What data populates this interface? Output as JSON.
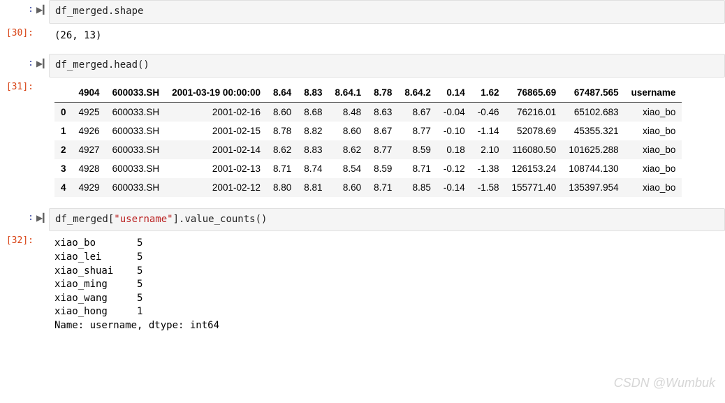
{
  "cell1": {
    "prompt_in": ":",
    "prompt_out": "[30]:",
    "code": "df_merged.shape",
    "output": "(26, 13)"
  },
  "cell2": {
    "prompt_in": ":",
    "prompt_out": "[31]:",
    "code": "df_merged.head()",
    "table": {
      "columns": [
        "4904",
        "600033.SH",
        "2001-03-19 00:00:00",
        "8.64",
        "8.83",
        "8.64.1",
        "8.78",
        "8.64.2",
        "0.14",
        "1.62",
        "76865.69",
        "67487.565",
        "username"
      ],
      "index": [
        "0",
        "1",
        "2",
        "3",
        "4"
      ],
      "rows": [
        [
          "4925",
          "600033.SH",
          "2001-02-16",
          "8.60",
          "8.68",
          "8.48",
          "8.63",
          "8.67",
          "-0.04",
          "-0.46",
          "76216.01",
          "65102.683",
          "xiao_bo"
        ],
        [
          "4926",
          "600033.SH",
          "2001-02-15",
          "8.78",
          "8.82",
          "8.60",
          "8.67",
          "8.77",
          "-0.10",
          "-1.14",
          "52078.69",
          "45355.321",
          "xiao_bo"
        ],
        [
          "4927",
          "600033.SH",
          "2001-02-14",
          "8.62",
          "8.83",
          "8.62",
          "8.77",
          "8.59",
          "0.18",
          "2.10",
          "116080.50",
          "101625.288",
          "xiao_bo"
        ],
        [
          "4928",
          "600033.SH",
          "2001-02-13",
          "8.71",
          "8.74",
          "8.54",
          "8.59",
          "8.71",
          "-0.12",
          "-1.38",
          "126153.24",
          "108744.130",
          "xiao_bo"
        ],
        [
          "4929",
          "600033.SH",
          "2001-02-12",
          "8.80",
          "8.81",
          "8.60",
          "8.71",
          "8.85",
          "-0.14",
          "-1.58",
          "155771.40",
          "135397.954",
          "xiao_bo"
        ]
      ]
    }
  },
  "cell3": {
    "prompt_in": ":",
    "prompt_out": "[32]:",
    "code_prefix": "df_merged[",
    "code_str": "\"username\"",
    "code_suffix": "].value_counts()",
    "output": "xiao_bo       5\nxiao_lei      5\nxiao_shuai    5\nxiao_ming     5\nxiao_wang     5\nxiao_hong     1\nName: username, dtype: int64"
  },
  "watermark": "CSDN @Wumbuk",
  "icons": {
    "run": "▶▎"
  },
  "styling": {
    "background_color": "#ffffff",
    "input_bg": "#f5f5f5",
    "input_border": "#e0e0e0",
    "out_prompt_color": "#D84315",
    "in_prompt_color": "#303F9F",
    "string_color": "#BA2121",
    "row_odd_bg": "#f5f5f5",
    "watermark_color": "#d6d6d6",
    "mono_font": "DejaVu Sans Mono, Menlo, Consolas, monospace",
    "body_font": "-apple-system, Segoe UI, Helvetica, Arial"
  }
}
